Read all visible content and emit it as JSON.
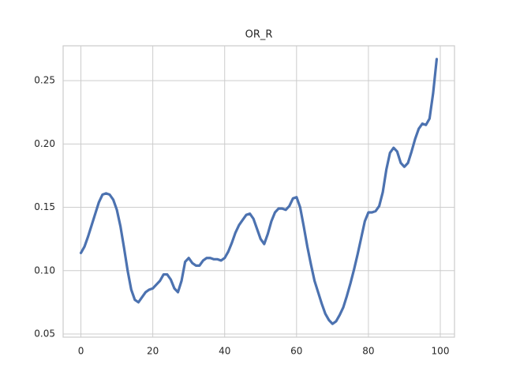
{
  "chart_data": {
    "type": "line",
    "title": "OR_R",
    "x": [
      0,
      1,
      2,
      3,
      4,
      5,
      6,
      7,
      8,
      9,
      10,
      11,
      12,
      13,
      14,
      15,
      16,
      17,
      18,
      19,
      20,
      21,
      22,
      23,
      24,
      25,
      26,
      27,
      28,
      29,
      30,
      31,
      32,
      33,
      34,
      35,
      36,
      37,
      38,
      39,
      40,
      41,
      42,
      43,
      44,
      45,
      46,
      47,
      48,
      49,
      50,
      51,
      52,
      53,
      54,
      55,
      56,
      57,
      58,
      59,
      60,
      61,
      62,
      63,
      64,
      65,
      66,
      67,
      68,
      69,
      70,
      71,
      72,
      73,
      74,
      75,
      76,
      77,
      78,
      79,
      80,
      81,
      82,
      83,
      84,
      85,
      86,
      87,
      88,
      89,
      90,
      91,
      92,
      93,
      94,
      95,
      96,
      97,
      98,
      99
    ],
    "series": [
      {
        "color": "#4c72b0",
        "values": [
          0.114,
          0.119,
          0.127,
          0.136,
          0.145,
          0.154,
          0.16,
          0.161,
          0.16,
          0.156,
          0.148,
          0.135,
          0.118,
          0.1,
          0.085,
          0.077,
          0.075,
          0.079,
          0.083,
          0.085,
          0.086,
          0.089,
          0.092,
          0.097,
          0.097,
          0.093,
          0.086,
          0.083,
          0.092,
          0.107,
          0.11,
          0.106,
          0.104,
          0.104,
          0.108,
          0.11,
          0.11,
          0.109,
          0.109,
          0.108,
          0.11,
          0.115,
          0.122,
          0.13,
          0.136,
          0.14,
          0.144,
          0.145,
          0.141,
          0.133,
          0.125,
          0.121,
          0.129,
          0.139,
          0.146,
          0.149,
          0.149,
          0.148,
          0.151,
          0.157,
          0.158,
          0.15,
          0.135,
          0.119,
          0.105,
          0.092,
          0.083,
          0.074,
          0.066,
          0.061,
          0.058,
          0.06,
          0.065,
          0.071,
          0.08,
          0.09,
          0.101,
          0.113,
          0.126,
          0.139,
          0.146,
          0.146,
          0.147,
          0.151,
          0.162,
          0.18,
          0.193,
          0.197,
          0.194,
          0.185,
          0.182,
          0.185,
          0.194,
          0.204,
          0.212,
          0.216,
          0.215,
          0.22,
          0.24,
          0.267
        ]
      }
    ],
    "xlim": [
      -4.95,
      103.95
    ],
    "xticks": [
      0,
      20,
      40,
      60,
      80,
      100
    ],
    "ylim": [
      0.0475,
      0.2775
    ],
    "yticks": [
      0.05,
      {
        "value": 0.1,
        "label": "0.10"
      },
      0.15,
      {
        "value": 0.2,
        "label": "0.20"
      },
      0.25
    ],
    "grid": true
  }
}
